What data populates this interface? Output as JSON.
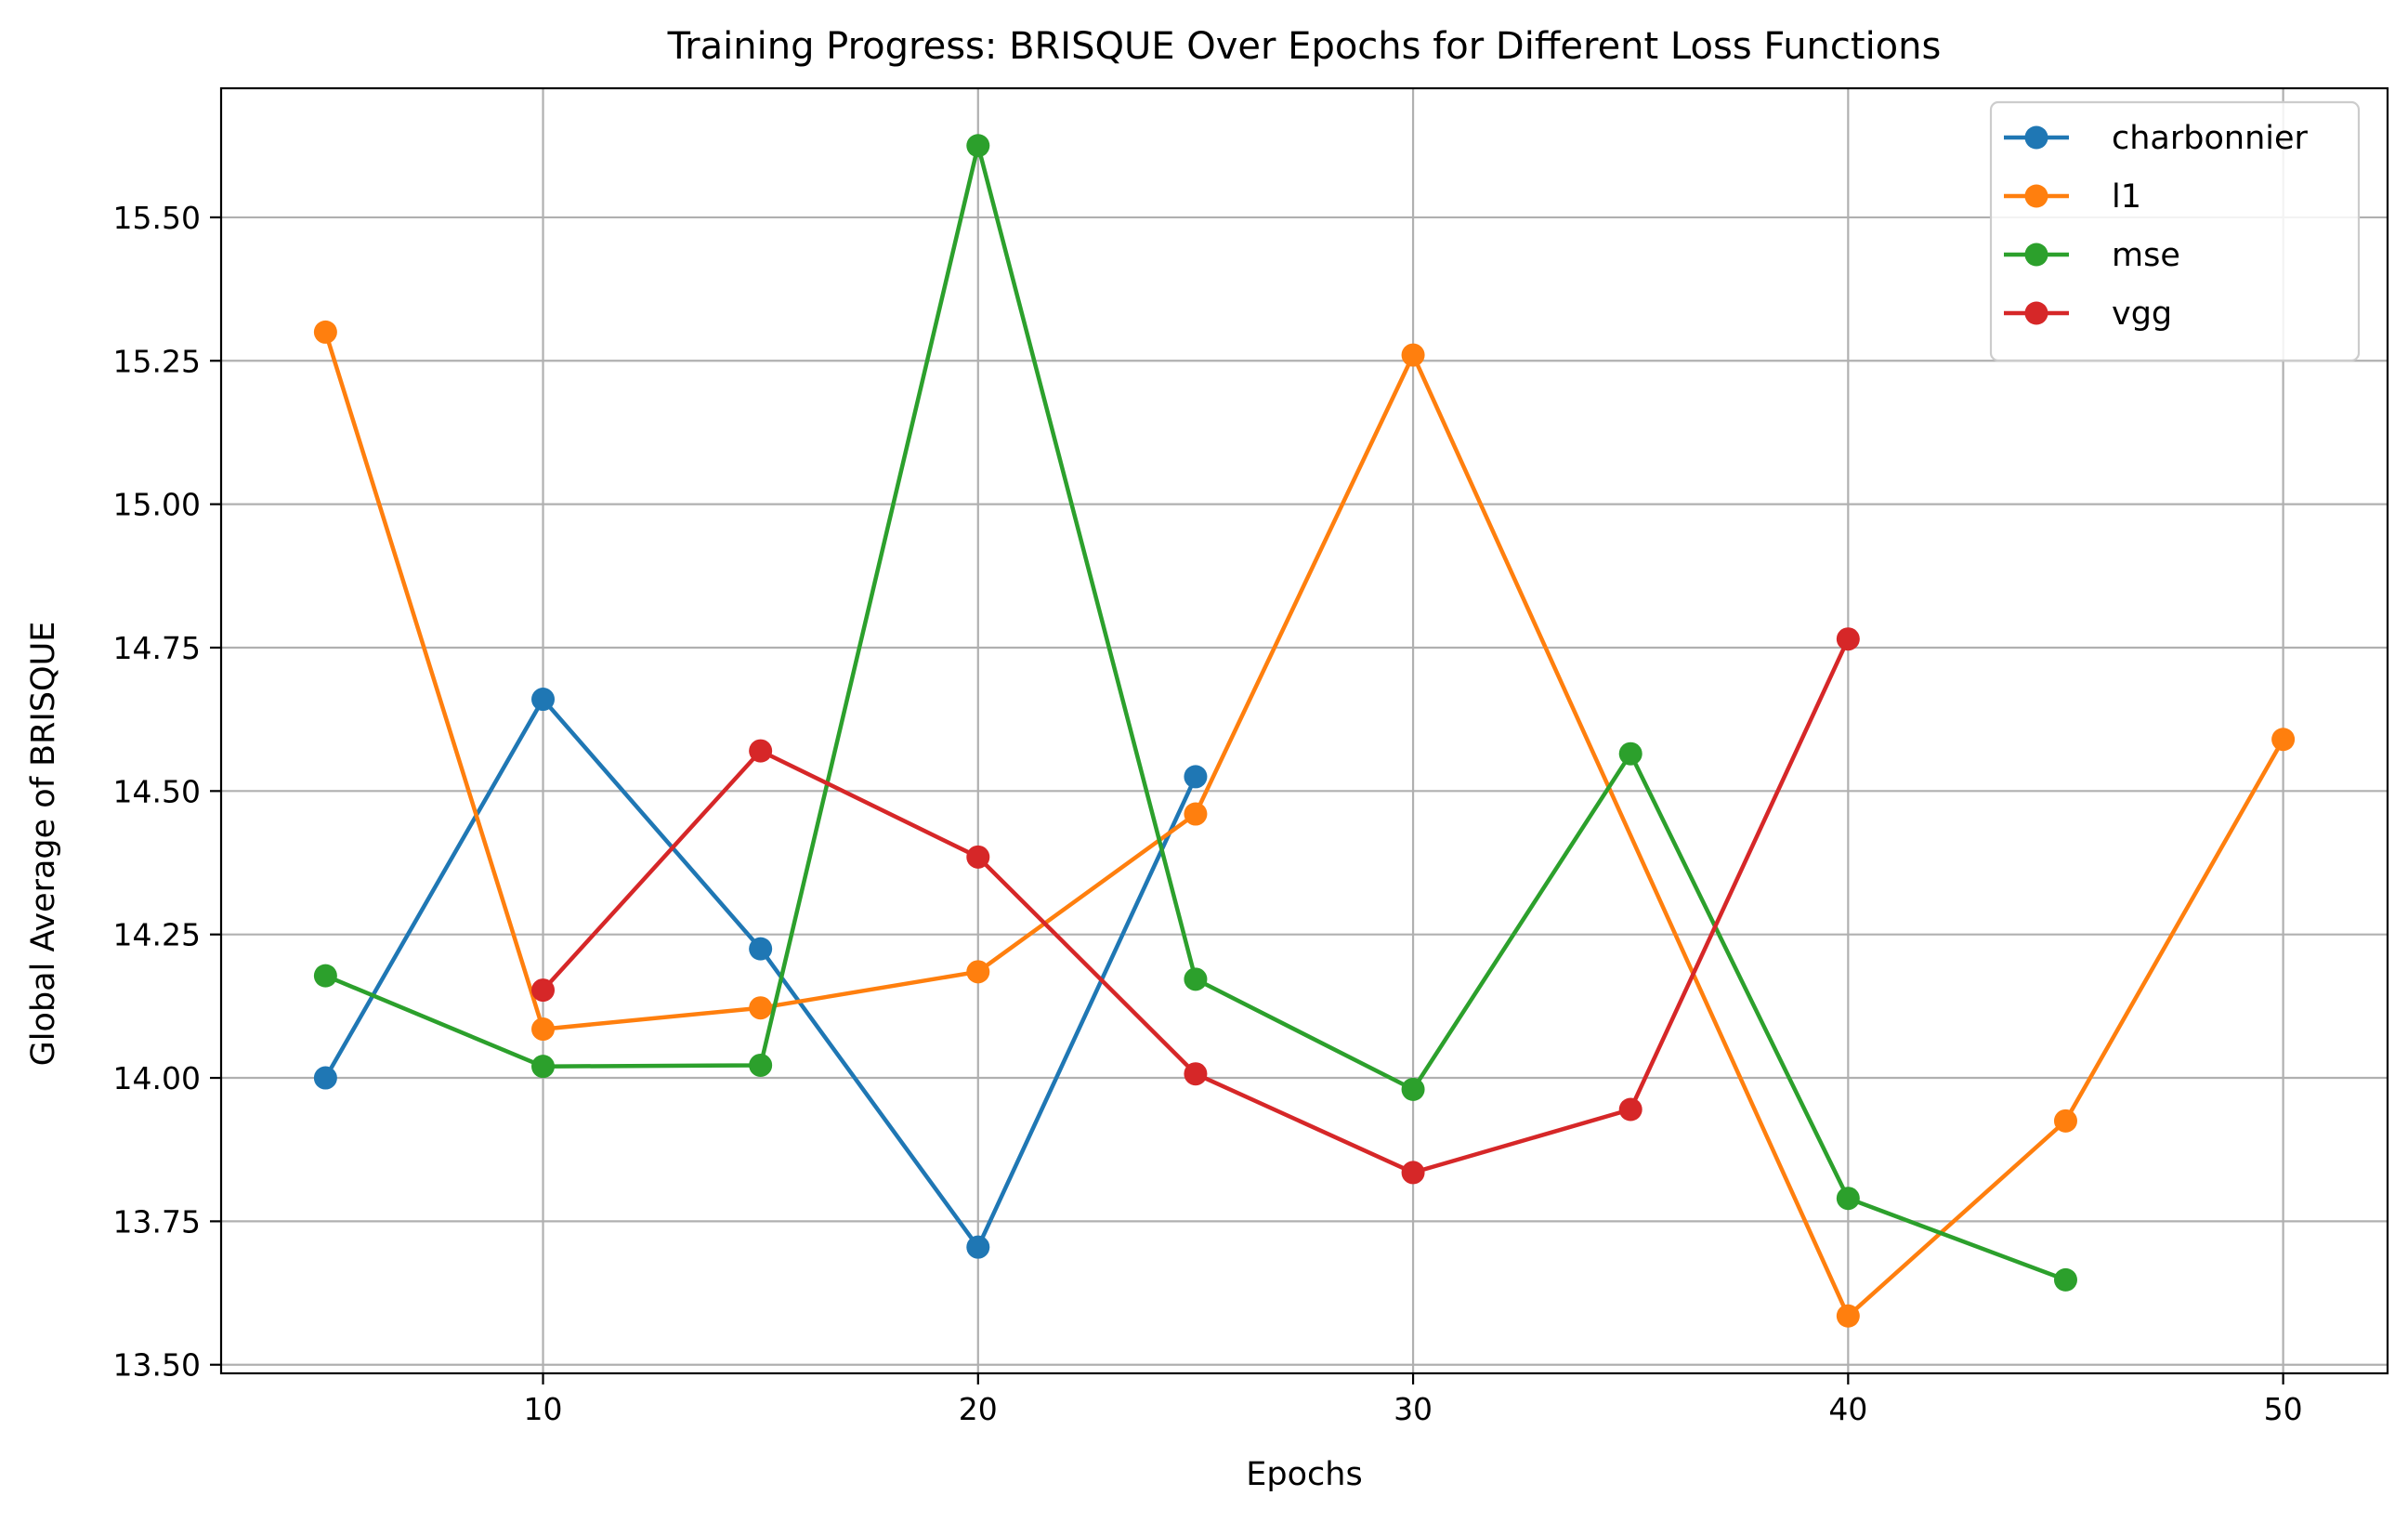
{
  "chart_data": {
    "type": "line",
    "title": "Training Progress: BRISQUE Over Epochs for Different Loss Functions",
    "xlabel": "Epochs",
    "ylabel": "Global Average of BRISQUE",
    "xlim": [
      2.6,
      52.4
    ],
    "ylim": [
      13.485,
      15.725
    ],
    "xticks": [
      10,
      20,
      30,
      40,
      50
    ],
    "xtick_labels": [
      "10",
      "20",
      "30",
      "40",
      "50"
    ],
    "yticks": [
      13.5,
      13.75,
      14.0,
      14.25,
      14.5,
      14.75,
      15.0,
      15.25,
      15.5
    ],
    "ytick_labels": [
      "13.50",
      "13.75",
      "14.00",
      "14.25",
      "14.50",
      "14.75",
      "15.00",
      "15.25",
      "15.50"
    ],
    "grid": true,
    "legend_position": "top-right",
    "series": [
      {
        "name": "charbonnier",
        "color": "#1f77b4",
        "x": [
          5,
          10,
          15,
          20,
          25
        ],
        "y": [
          14.0,
          14.66,
          14.225,
          13.705,
          14.525
        ]
      },
      {
        "name": "l1",
        "color": "#ff7f0e",
        "x": [
          5,
          10,
          15,
          20,
          25,
          30,
          40,
          45,
          50
        ],
        "y": [
          15.3,
          14.085,
          14.122,
          14.185,
          14.46,
          15.26,
          13.585,
          13.925,
          14.59
        ]
      },
      {
        "name": "mse",
        "color": "#2ca02c",
        "x": [
          5,
          10,
          15,
          20,
          25,
          30,
          35,
          40,
          45
        ],
        "y": [
          14.178,
          14.02,
          14.022,
          15.625,
          14.172,
          13.98,
          14.565,
          13.79,
          13.648
        ]
      },
      {
        "name": "vgg",
        "color": "#d62728",
        "x": [
          10,
          15,
          20,
          25,
          30,
          35,
          40
        ],
        "y": [
          14.153,
          14.57,
          14.385,
          14.007,
          13.835,
          13.945,
          14.765
        ]
      }
    ]
  }
}
